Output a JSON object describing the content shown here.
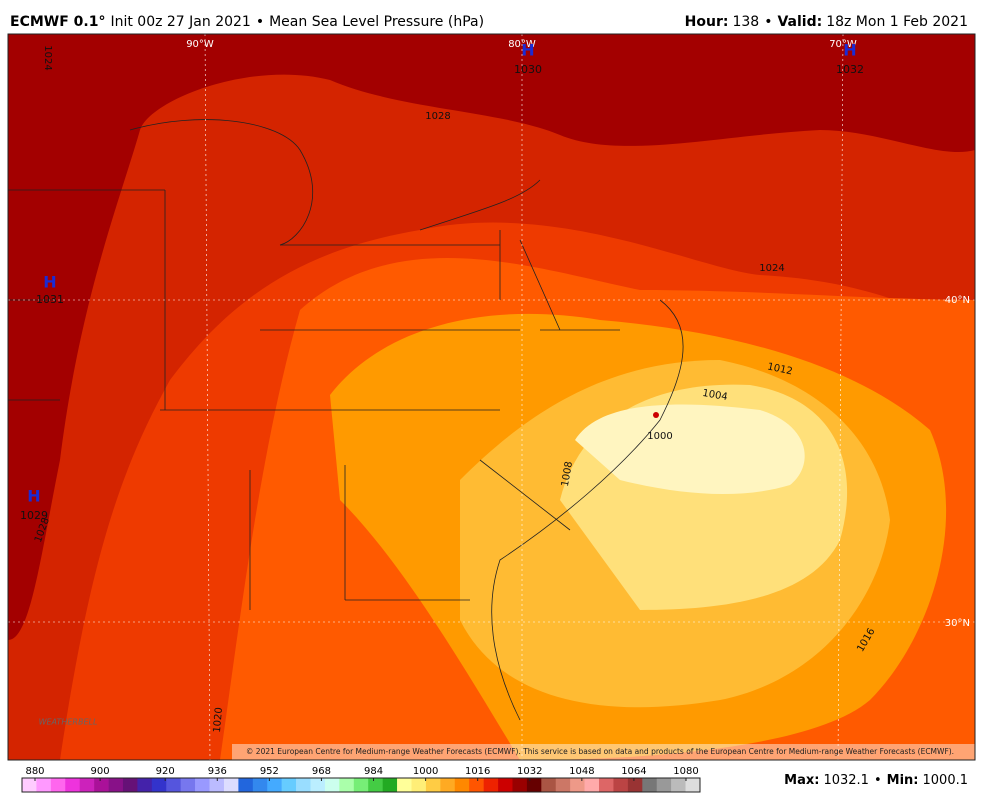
{
  "header": {
    "model": "ECMWF 0.1°",
    "init": "Init 00z 27 Jan 2021",
    "separator": "•",
    "field": "Mean Sea Level Pressure (hPa)",
    "hour_label": "Hour:",
    "hour": "138",
    "valid_label": "Valid:",
    "valid": "18z Mon 1 Feb 2021"
  },
  "map": {
    "graticule": [
      "90°W",
      "80°W",
      "70°W",
      "40°N",
      "30°N"
    ],
    "contour_labels": [
      "1024",
      "1028",
      "1024",
      "1020",
      "1016",
      "1012",
      "1004",
      "1008",
      "1000",
      "1028"
    ],
    "highs": [
      {
        "symbol": "H",
        "value": 1030
      },
      {
        "symbol": "H",
        "value": 1032
      },
      {
        "symbol": "H",
        "value": 1031
      },
      {
        "symbol": "H",
        "value": 1029
      }
    ],
    "low": {
      "value": 1000
    },
    "credit": "© 2021 European Centre for Medium-range Weather Forecasts (ECMWF). This service is based on data and products of the European Centre for Medium-range Weather Forecasts (ECMWF).",
    "logo": "WEATHERBELL"
  },
  "colorbar": {
    "ticks": [
      880,
      900,
      920,
      936,
      952,
      968,
      984,
      1000,
      1016,
      1032,
      1048,
      1064,
      1080
    ],
    "colors": [
      "#ffccff",
      "#ff99ff",
      "#ff66ee",
      "#ee33dd",
      "#cc22bb",
      "#aa1199",
      "#881188",
      "#661177",
      "#4422aa",
      "#3333cc",
      "#5555dd",
      "#7777ee",
      "#9999ff",
      "#bbbbff",
      "#ddddff",
      "#2266dd",
      "#3388ee",
      "#44aaff",
      "#66ccff",
      "#99ddff",
      "#bbeeff",
      "#ccffee",
      "#aaffaa",
      "#77ee77",
      "#44cc44",
      "#22aa22",
      "#ffff99",
      "#ffee77",
      "#ffcc44",
      "#ffaa22",
      "#ff8800",
      "#ff5500",
      "#ee2200",
      "#cc0000",
      "#990000",
      "#660000",
      "#aa5544",
      "#cc7766",
      "#ee9988",
      "#ffaaaa",
      "#dd6666",
      "#bb4444",
      "#993333",
      "#777777",
      "#999999",
      "#bbbbbb",
      "#dddddd"
    ]
  },
  "footer": {
    "max_label": "Max:",
    "max": 1032.1,
    "separator": "•",
    "min_label": "Min:",
    "min": 1000.1
  }
}
